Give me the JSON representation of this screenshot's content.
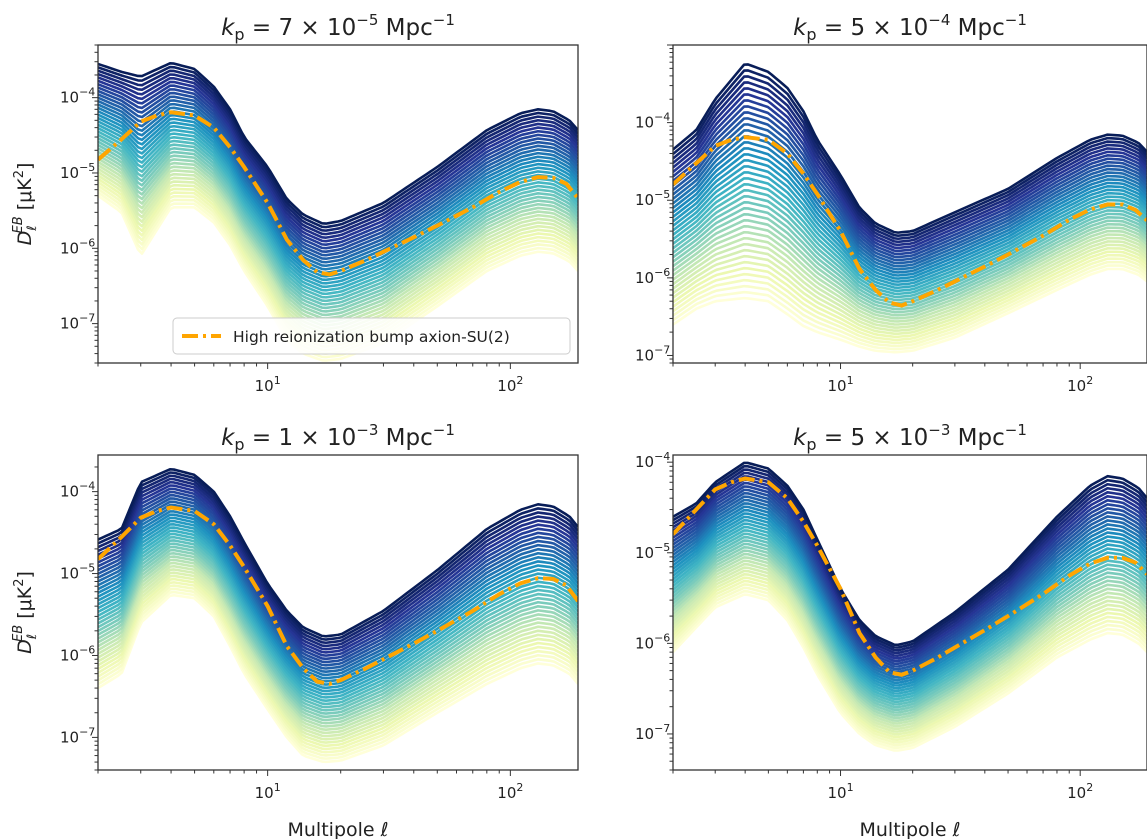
{
  "chart_data": [
    {
      "type": "line",
      "title_base": "k",
      "title_sub": "p",
      "title_mid": " = 7 × 10",
      "title_exp": "−5",
      "title_unit": " Mpc",
      "title_unit_exp": "−1",
      "xscale": "log",
      "yscale": "log",
      "xlim": [
        2,
        190
      ],
      "ylim": [
        3e-08,
        0.0005
      ],
      "xticks": [
        {
          "base": "10",
          "exp": "1",
          "value": 10
        },
        {
          "base": "10",
          "exp": "2",
          "value": 100
        }
      ],
      "yticks": [
        {
          "base": "10",
          "exp": "−4",
          "value": 0.0001
        },
        {
          "base": "10",
          "exp": "−5",
          "value": 1e-05
        },
        {
          "base": "10",
          "exp": "−6",
          "value": 1e-06
        },
        {
          "base": "10",
          "exp": "−7",
          "value": 1e-07
        }
      ],
      "ylabel_main": "D",
      "ylabel_sub": "ℓ",
      "ylabel_sup": "EB",
      "ylabel_unit": " [μK",
      "ylabel_unit_exp": "2",
      "ylabel_close": "]",
      "xlabel": "",
      "legend": "High reionization bump axion-SU(2)",
      "legend_position": "lower-right",
      "band_top": [
        [
          2,
          0.00028
        ],
        [
          2.5,
          0.00022
        ],
        [
          3,
          0.00019
        ],
        [
          4,
          0.00029
        ],
        [
          5,
          0.00024
        ],
        [
          6,
          0.00014
        ],
        [
          7,
          7e-05
        ],
        [
          8,
          3e-05
        ],
        [
          10,
          1.2e-05
        ],
        [
          12,
          4.5e-06
        ],
        [
          14,
          2.8e-06
        ],
        [
          17,
          2.1e-06
        ],
        [
          20,
          2.3e-06
        ],
        [
          30,
          4e-06
        ],
        [
          50,
          1.2e-05
        ],
        [
          80,
          3.7e-05
        ],
        [
          110,
          6.2e-05
        ],
        [
          130,
          7e-05
        ],
        [
          150,
          6.6e-05
        ],
        [
          175,
          5e-05
        ],
        [
          190,
          3.7e-05
        ]
      ],
      "band_bottom": [
        [
          2,
          5e-06
        ],
        [
          2.5,
          3e-06
        ],
        [
          3,
          8e-07
        ],
        [
          4,
          3.5e-06
        ],
        [
          5,
          3.5e-06
        ],
        [
          6,
          2.2e-06
        ],
        [
          7,
          1.1e-06
        ],
        [
          8,
          5e-07
        ],
        [
          10,
          1.7e-07
        ],
        [
          12,
          6e-08
        ],
        [
          14,
          4e-08
        ],
        [
          17,
          3.2e-08
        ],
        [
          20,
          3.4e-08
        ],
        [
          30,
          5.5e-08
        ],
        [
          50,
          1.7e-07
        ],
        [
          80,
          5e-07
        ],
        [
          110,
          8e-07
        ],
        [
          130,
          9e-07
        ],
        [
          150,
          8.6e-07
        ],
        [
          175,
          6.7e-07
        ],
        [
          190,
          5e-07
        ]
      ],
      "reference_curve": [
        [
          2,
          1.5e-05
        ],
        [
          2.5,
          2.8e-05
        ],
        [
          3,
          4.8e-05
        ],
        [
          3.5,
          5.8e-05
        ],
        [
          4,
          6.4e-05
        ],
        [
          5,
          5.8e-05
        ],
        [
          6,
          4e-05
        ],
        [
          7,
          2.2e-05
        ],
        [
          8,
          1.2e-05
        ],
        [
          10,
          4e-06
        ],
        [
          12,
          1.3e-06
        ],
        [
          14,
          7e-07
        ],
        [
          16,
          4.8e-07
        ],
        [
          18,
          4.5e-07
        ],
        [
          20,
          5e-07
        ],
        [
          25,
          6.8e-07
        ],
        [
          30,
          9e-07
        ],
        [
          40,
          1.4e-06
        ],
        [
          50,
          2e-06
        ],
        [
          70,
          3.5e-06
        ],
        [
          90,
          5.6e-06
        ],
        [
          110,
          7.6e-06
        ],
        [
          130,
          8.8e-06
        ],
        [
          150,
          8.6e-06
        ],
        [
          170,
          7.2e-06
        ],
        [
          190,
          4.6e-06
        ]
      ]
    },
    {
      "type": "line",
      "title_base": "k",
      "title_sub": "p",
      "title_mid": " = 5 × 10",
      "title_exp": "−4",
      "title_unit": " Mpc",
      "title_unit_exp": "−1",
      "xscale": "log",
      "yscale": "log",
      "xlim": [
        2,
        190
      ],
      "ylim": [
        8e-08,
        0.001
      ],
      "xticks": [
        {
          "base": "10",
          "exp": "1",
          "value": 10
        },
        {
          "base": "10",
          "exp": "2",
          "value": 100
        }
      ],
      "yticks": [
        {
          "base": "10",
          "exp": "−4",
          "value": 0.0001
        },
        {
          "base": "10",
          "exp": "−5",
          "value": 1e-05
        },
        {
          "base": "10",
          "exp": "−6",
          "value": 1e-06
        },
        {
          "base": "10",
          "exp": "−7",
          "value": 1e-07
        }
      ],
      "ylabel_main": "",
      "ylabel_sub": "",
      "ylabel_sup": "",
      "ylabel_unit": "",
      "ylabel_unit_exp": "",
      "ylabel_close": "",
      "xlabel": "",
      "legend": "",
      "band_top": [
        [
          2,
          4.5e-05
        ],
        [
          2.5,
          8e-05
        ],
        [
          3,
          0.0002
        ],
        [
          4,
          0.00058
        ],
        [
          5,
          0.00045
        ],
        [
          6,
          0.00028
        ],
        [
          7,
          0.00014
        ],
        [
          8,
          6e-05
        ],
        [
          10,
          2.1e-05
        ],
        [
          12,
          8e-06
        ],
        [
          14,
          5e-06
        ],
        [
          17,
          3.8e-06
        ],
        [
          20,
          4e-06
        ],
        [
          30,
          7e-06
        ],
        [
          50,
          1.4e-05
        ],
        [
          80,
          3.5e-05
        ],
        [
          110,
          6e-05
        ],
        [
          130,
          7e-05
        ],
        [
          150,
          6.8e-05
        ],
        [
          175,
          5.5e-05
        ],
        [
          190,
          4.2e-05
        ]
      ],
      "band_bottom": [
        [
          2,
          2.5e-07
        ],
        [
          2.5,
          4e-07
        ],
        [
          3,
          5e-07
        ],
        [
          4,
          5.5e-07
        ],
        [
          5,
          5e-07
        ],
        [
          6,
          3.4e-07
        ],
        [
          7,
          2.4e-07
        ],
        [
          8,
          2e-07
        ],
        [
          10,
          1.6e-07
        ],
        [
          12,
          1.3e-07
        ],
        [
          14,
          1.15e-07
        ],
        [
          17,
          1.1e-07
        ],
        [
          20,
          1.15e-07
        ],
        [
          30,
          1.7e-07
        ],
        [
          50,
          3.5e-07
        ],
        [
          80,
          7e-07
        ],
        [
          110,
          1.1e-06
        ],
        [
          130,
          1.3e-06
        ],
        [
          150,
          1.3e-06
        ],
        [
          175,
          1.1e-06
        ],
        [
          190,
          9e-07
        ]
      ],
      "reference_curve": [
        [
          2,
          1.6e-05
        ],
        [
          2.5,
          3e-05
        ],
        [
          3,
          5e-05
        ],
        [
          3.5,
          6e-05
        ],
        [
          4,
          6.5e-05
        ],
        [
          5,
          6e-05
        ],
        [
          6,
          4e-05
        ],
        [
          7,
          2.2e-05
        ],
        [
          8,
          1.2e-05
        ],
        [
          10,
          4e-06
        ],
        [
          12,
          1.3e-06
        ],
        [
          14,
          7e-07
        ],
        [
          16,
          4.8e-07
        ],
        [
          18,
          4.4e-07
        ],
        [
          20,
          5e-07
        ],
        [
          25,
          6.8e-07
        ],
        [
          30,
          9e-07
        ],
        [
          40,
          1.4e-06
        ],
        [
          50,
          2e-06
        ],
        [
          70,
          3.5e-06
        ],
        [
          90,
          5.6e-06
        ],
        [
          110,
          7.6e-06
        ],
        [
          130,
          8.8e-06
        ],
        [
          150,
          8.8e-06
        ],
        [
          170,
          7.5e-06
        ],
        [
          190,
          5.5e-06
        ]
      ]
    },
    {
      "type": "line",
      "title_base": "k",
      "title_sub": "p",
      "title_mid": " = 1 × 10",
      "title_exp": "−3",
      "title_unit": " Mpc",
      "title_unit_exp": "−1",
      "xscale": "log",
      "yscale": "log",
      "xlim": [
        2,
        190
      ],
      "ylim": [
        4e-08,
        0.00028
      ],
      "xticks": [
        {
          "base": "10",
          "exp": "1",
          "value": 10
        },
        {
          "base": "10",
          "exp": "2",
          "value": 100
        }
      ],
      "yticks": [
        {
          "base": "10",
          "exp": "−4",
          "value": 0.0001
        },
        {
          "base": "10",
          "exp": "−5",
          "value": 1e-05
        },
        {
          "base": "10",
          "exp": "−6",
          "value": 1e-06
        },
        {
          "base": "10",
          "exp": "−7",
          "value": 1e-07
        }
      ],
      "ylabel_main": "D",
      "ylabel_sub": "ℓ",
      "ylabel_sup": "EB",
      "ylabel_unit": " [μK",
      "ylabel_unit_exp": "2",
      "ylabel_close": "]",
      "xlabel": "Multipole ℓ",
      "legend": "",
      "band_top": [
        [
          2,
          2.6e-05
        ],
        [
          2.5,
          3.5e-05
        ],
        [
          3,
          0.00013
        ],
        [
          4,
          0.00019
        ],
        [
          5,
          0.00016
        ],
        [
          6,
          0.0001
        ],
        [
          7,
          5e-05
        ],
        [
          8,
          2.4e-05
        ],
        [
          10,
          7.5e-06
        ],
        [
          12,
          3.5e-06
        ],
        [
          14,
          2.2e-06
        ],
        [
          17,
          1.7e-06
        ],
        [
          20,
          1.8e-06
        ],
        [
          30,
          3.5e-06
        ],
        [
          50,
          1.1e-05
        ],
        [
          80,
          3.5e-05
        ],
        [
          110,
          6e-05
        ],
        [
          130,
          7e-05
        ],
        [
          150,
          6.6e-05
        ],
        [
          175,
          5e-05
        ],
        [
          190,
          3.7e-05
        ]
      ],
      "band_bottom": [
        [
          2,
          4e-07
        ],
        [
          2.5,
          6e-07
        ],
        [
          3,
          2.5e-06
        ],
        [
          4,
          5.5e-06
        ],
        [
          5,
          5e-06
        ],
        [
          6,
          3e-06
        ],
        [
          7,
          1.3e-06
        ],
        [
          8,
          6e-07
        ],
        [
          10,
          2.2e-07
        ],
        [
          12,
          1e-07
        ],
        [
          14,
          6e-08
        ],
        [
          17,
          5e-08
        ],
        [
          20,
          5.2e-08
        ],
        [
          30,
          8e-08
        ],
        [
          50,
          2e-07
        ],
        [
          80,
          4.5e-07
        ],
        [
          110,
          7e-07
        ],
        [
          130,
          8e-07
        ],
        [
          150,
          7.6e-07
        ],
        [
          175,
          6e-07
        ],
        [
          190,
          4.5e-07
        ]
      ],
      "reference_curve": [
        [
          2,
          1.5e-05
        ],
        [
          2.5,
          2.8e-05
        ],
        [
          3,
          4.8e-05
        ],
        [
          3.5,
          5.8e-05
        ],
        [
          4,
          6.4e-05
        ],
        [
          5,
          5.8e-05
        ],
        [
          6,
          4e-05
        ],
        [
          7,
          2.2e-05
        ],
        [
          8,
          1.2e-05
        ],
        [
          10,
          4e-06
        ],
        [
          12,
          1.3e-06
        ],
        [
          14,
          7e-07
        ],
        [
          16,
          4.8e-07
        ],
        [
          18,
          4.5e-07
        ],
        [
          20,
          5e-07
        ],
        [
          25,
          6.8e-07
        ],
        [
          30,
          9e-07
        ],
        [
          40,
          1.4e-06
        ],
        [
          50,
          2e-06
        ],
        [
          70,
          3.5e-06
        ],
        [
          90,
          5.6e-06
        ],
        [
          110,
          7.6e-06
        ],
        [
          130,
          8.8e-06
        ],
        [
          150,
          8.6e-06
        ],
        [
          170,
          7.2e-06
        ],
        [
          190,
          4.6e-06
        ]
      ]
    },
    {
      "type": "line",
      "title_base": "k",
      "title_sub": "p",
      "title_mid": " = 5 × 10",
      "title_exp": "−3",
      "title_unit": " Mpc",
      "title_unit_exp": "−1",
      "xscale": "log",
      "yscale": "log",
      "xlim": [
        2,
        190
      ],
      "ylim": [
        4e-08,
        0.00012
      ],
      "xticks": [
        {
          "base": "10",
          "exp": "1",
          "value": 10
        },
        {
          "base": "10",
          "exp": "2",
          "value": 100
        }
      ],
      "yticks": [
        {
          "base": "10",
          "exp": "−4",
          "value": 0.0001
        },
        {
          "base": "10",
          "exp": "−5",
          "value": 1e-05
        },
        {
          "base": "10",
          "exp": "−6",
          "value": 1e-06
        },
        {
          "base": "10",
          "exp": "−7",
          "value": 1e-07
        }
      ],
      "ylabel_main": "",
      "ylabel_sub": "",
      "ylabel_sup": "",
      "ylabel_unit": "",
      "ylabel_unit_exp": "",
      "ylabel_close": "",
      "xlabel": "Multipole ℓ",
      "legend": "",
      "band_top": [
        [
          2,
          2.5e-05
        ],
        [
          2.5,
          3.5e-05
        ],
        [
          3,
          6e-05
        ],
        [
          4,
          0.0001
        ],
        [
          5,
          8.5e-05
        ],
        [
          6,
          5.5e-05
        ],
        [
          7,
          3e-05
        ],
        [
          8,
          1.4e-05
        ],
        [
          10,
          4e-06
        ],
        [
          12,
          1.8e-06
        ],
        [
          14,
          1.2e-06
        ],
        [
          17,
          9.5e-07
        ],
        [
          20,
          1.05e-06
        ],
        [
          30,
          2.2e-06
        ],
        [
          50,
          6.5e-06
        ],
        [
          80,
          2.5e-05
        ],
        [
          110,
          5.5e-05
        ],
        [
          130,
          7e-05
        ],
        [
          150,
          6.6e-05
        ],
        [
          175,
          5.2e-05
        ],
        [
          190,
          4e-05
        ]
      ],
      "band_bottom": [
        [
          2,
          8e-07
        ],
        [
          2.5,
          1.5e-06
        ],
        [
          3,
          2.5e-06
        ],
        [
          4,
          3.5e-06
        ],
        [
          5,
          3e-06
        ],
        [
          6,
          1.8e-06
        ],
        [
          7,
          9e-07
        ],
        [
          8,
          4.5e-07
        ],
        [
          10,
          1.7e-07
        ],
        [
          12,
          1e-07
        ],
        [
          14,
          7.5e-08
        ],
        [
          17,
          6.5e-08
        ],
        [
          20,
          7e-08
        ],
        [
          30,
          1.2e-07
        ],
        [
          50,
          2.8e-07
        ],
        [
          80,
          7e-07
        ],
        [
          110,
          1.1e-06
        ],
        [
          130,
          1.3e-06
        ],
        [
          150,
          1.25e-06
        ],
        [
          175,
          1e-06
        ],
        [
          190,
          8e-07
        ]
      ],
      "reference_curve": [
        [
          2,
          1.6e-05
        ],
        [
          2.5,
          3e-05
        ],
        [
          3,
          5e-05
        ],
        [
          3.5,
          6e-05
        ],
        [
          4,
          6.6e-05
        ],
        [
          5,
          6e-05
        ],
        [
          6,
          4e-05
        ],
        [
          7,
          2.2e-05
        ],
        [
          8,
          1.2e-05
        ],
        [
          10,
          4e-06
        ],
        [
          12,
          1.3e-06
        ],
        [
          14,
          7e-07
        ],
        [
          16,
          4.8e-07
        ],
        [
          18,
          4.5e-07
        ],
        [
          20,
          5e-07
        ],
        [
          25,
          6.8e-07
        ],
        [
          30,
          9e-07
        ],
        [
          40,
          1.4e-06
        ],
        [
          50,
          2e-06
        ],
        [
          70,
          3.5e-06
        ],
        [
          90,
          5.6e-06
        ],
        [
          110,
          7.6e-06
        ],
        [
          130,
          8.8e-06
        ],
        [
          150,
          8.8e-06
        ],
        [
          170,
          7.8e-06
        ],
        [
          190,
          5.8e-06
        ]
      ]
    }
  ],
  "colors": {
    "reference_curve": "#FFA500",
    "band_dark": "#081d58",
    "band_light": "#ffffd9",
    "axes": "#333333"
  },
  "band_colormap": "YlGnBu",
  "band_line_count": 40
}
